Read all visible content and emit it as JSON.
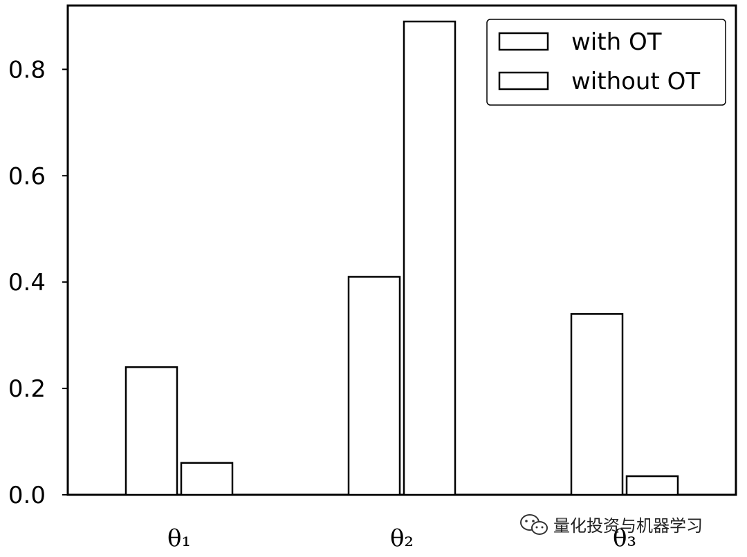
{
  "chart_data": {
    "type": "bar",
    "title": "",
    "xlabel": "",
    "ylabel": "",
    "categories": [
      "θ₁",
      "θ₂",
      "θ₃"
    ],
    "series": [
      {
        "name": "with OT",
        "values": [
          0.24,
          0.41,
          0.34
        ]
      },
      {
        "name": "without OT",
        "values": [
          0.06,
          0.89,
          0.035
        ]
      }
    ],
    "ylim": [
      0,
      0.92
    ],
    "yticks": [
      0.0,
      0.2,
      0.4,
      0.6,
      0.8
    ],
    "ytick_labels": [
      "0.0",
      "0.2",
      "0.4",
      "0.6",
      "0.8"
    ],
    "legend_position": "top-right",
    "grid": false,
    "bar_fill": "#ffffff",
    "bar_stroke": "#000000"
  },
  "watermark": {
    "text": "量化投资与机器学习",
    "icon": "wechat-icon"
  }
}
